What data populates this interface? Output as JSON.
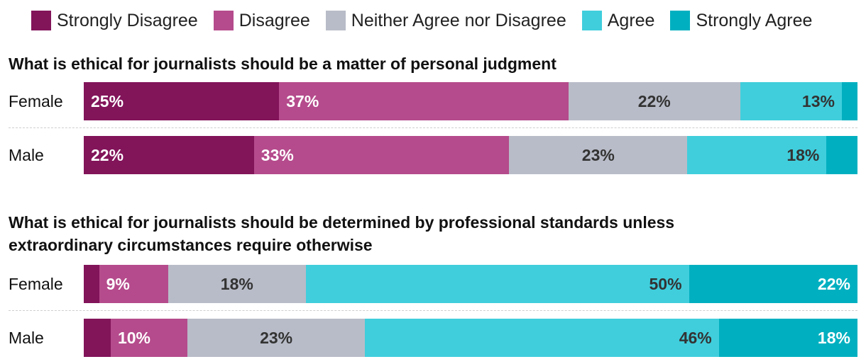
{
  "chart_data": {
    "type": "bar",
    "orientation": "horizontal",
    "stacked": true,
    "normalized": true,
    "legend": {
      "position": "top",
      "entries": [
        {
          "name": "Strongly Disagree",
          "color": "#82145a"
        },
        {
          "name": "Disagree",
          "color": "#b54b8c"
        },
        {
          "name": "Neither Agree nor Disagree",
          "color": "#b8bcc8"
        },
        {
          "name": "Agree",
          "color": "#40cedc"
        },
        {
          "name": "Strongly Agree",
          "color": "#00b0c0"
        }
      ]
    },
    "panels": [
      {
        "title": "What is ethical for journalists should be a matter of personal judgment",
        "categories": [
          "Female",
          "Male"
        ],
        "series": [
          {
            "name": "Strongly Disagree",
            "values": [
              25,
              22
            ],
            "labels": [
              "25%",
              "22%"
            ]
          },
          {
            "name": "Disagree",
            "values": [
              37,
              33
            ],
            "labels": [
              "37%",
              "33%"
            ]
          },
          {
            "name": "Neither Agree nor Disagree",
            "values": [
              22,
              23
            ],
            "labels": [
              "22%",
              "23%"
            ]
          },
          {
            "name": "Agree",
            "values": [
              13,
              18
            ],
            "labels": [
              "13%",
              "18%"
            ]
          },
          {
            "name": "Strongly Agree",
            "values": [
              2,
              4
            ],
            "labels": [
              "",
              ""
            ]
          }
        ]
      },
      {
        "title": "What is ethical for journalists should be determined by professional standards unless extraordinary circumstances require otherwise",
        "categories": [
          "Female",
          "Male"
        ],
        "series": [
          {
            "name": "Strongly Disagree",
            "values": [
              2,
              3.5
            ],
            "labels": [
              "",
              ""
            ]
          },
          {
            "name": "Disagree",
            "values": [
              9,
              10
            ],
            "labels": [
              "9%",
              "10%"
            ]
          },
          {
            "name": "Neither Agree nor Disagree",
            "values": [
              18,
              23
            ],
            "labels": [
              "18%",
              "23%"
            ]
          },
          {
            "name": "Agree",
            "values": [
              50,
              46
            ],
            "labels": [
              "50%",
              "46%"
            ]
          },
          {
            "name": "Strongly Agree",
            "values": [
              22,
              18
            ],
            "labels": [
              "22%",
              "18%"
            ]
          }
        ]
      }
    ]
  }
}
